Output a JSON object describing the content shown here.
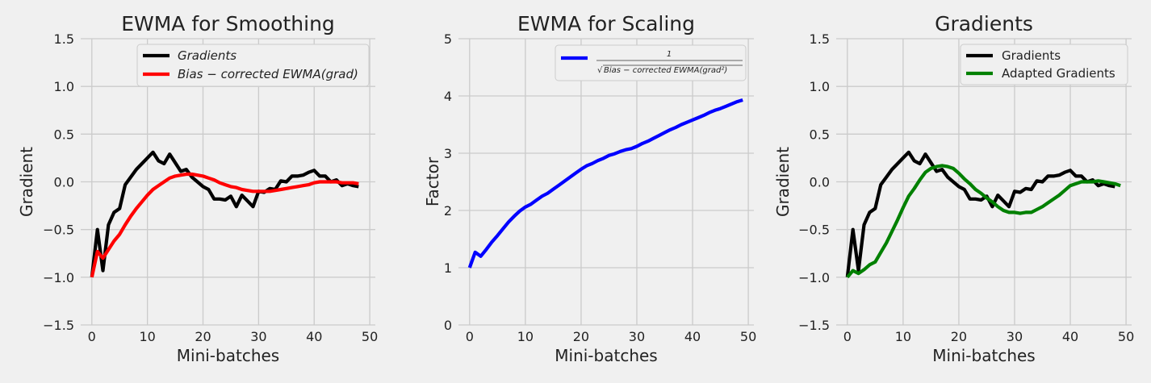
{
  "chart_data": [
    {
      "type": "line",
      "title": "EWMA for Smoothing",
      "xlabel": "Mini-batches",
      "ylabel": "Gradient",
      "xlim": [
        -2,
        51
      ],
      "ylim": [
        -1.5,
        1.5
      ],
      "xticks": [
        "0",
        "10",
        "20",
        "30",
        "40",
        "50"
      ],
      "yticks": [
        "−1.5",
        "−1.0",
        "−0.5",
        "0.0",
        "0.5",
        "1.0",
        "1.5"
      ],
      "legend": "upper-right",
      "grid": true,
      "series": [
        {
          "name": "Gradients",
          "color": "#000000",
          "x": [
            0,
            1,
            2,
            3,
            4,
            5,
            6,
            7,
            8,
            9,
            10,
            11,
            12,
            13,
            14,
            15,
            16,
            17,
            18,
            19,
            20,
            21,
            22,
            23,
            24,
            25,
            26,
            27,
            28,
            29,
            30,
            31,
            32,
            33,
            34,
            35,
            36,
            37,
            38,
            39,
            40,
            41,
            42,
            43,
            44,
            45,
            46,
            47,
            48,
            49
          ],
          "values": [
            -1.0,
            -0.5,
            -0.93,
            -0.45,
            -0.32,
            -0.28,
            -0.03,
            0.05,
            0.13,
            0.19,
            0.25,
            0.31,
            0.22,
            0.19,
            0.29,
            0.2,
            0.11,
            0.13,
            0.05,
            0.0,
            -0.05,
            -0.08,
            -0.18,
            -0.18,
            -0.19,
            -0.15,
            -0.26,
            -0.14,
            -0.2,
            -0.26,
            -0.1,
            -0.11,
            -0.07,
            -0.08,
            0.01,
            0.0,
            0.06,
            0.06,
            0.07,
            0.1,
            0.12,
            0.06,
            0.06,
            0.0,
            0.02,
            -0.04,
            -0.02,
            -0.04,
            -0.05,
            null
          ]
        },
        {
          "name": "Bias − corrected EWMA(grad)",
          "color": "#ff0000",
          "x": [
            0,
            1,
            2,
            3,
            4,
            5,
            6,
            7,
            8,
            9,
            10,
            11,
            12,
            13,
            14,
            15,
            16,
            17,
            18,
            19,
            20,
            21,
            22,
            23,
            24,
            25,
            26,
            27,
            28,
            29,
            30,
            31,
            32,
            33,
            34,
            35,
            36,
            37,
            38,
            39,
            40,
            41,
            42,
            43,
            44,
            45,
            46,
            47,
            48,
            49
          ],
          "values": [
            -1.0,
            -0.73,
            -0.8,
            -0.71,
            -0.62,
            -0.55,
            -0.45,
            -0.36,
            -0.28,
            -0.21,
            -0.14,
            -0.08,
            -0.04,
            0.0,
            0.04,
            0.06,
            0.07,
            0.08,
            0.08,
            0.07,
            0.06,
            0.04,
            0.02,
            -0.01,
            -0.03,
            -0.05,
            -0.06,
            -0.08,
            -0.09,
            -0.1,
            -0.1,
            -0.1,
            -0.1,
            -0.09,
            -0.08,
            -0.07,
            -0.06,
            -0.05,
            -0.04,
            -0.03,
            -0.01,
            0.0,
            0.0,
            0.0,
            0.0,
            -0.01,
            -0.01,
            -0.01,
            -0.02,
            null
          ]
        }
      ]
    },
    {
      "type": "line",
      "title": "EWMA for Scaling",
      "xlabel": "Mini-batches",
      "ylabel": "Factor",
      "xlim": [
        -2,
        51
      ],
      "ylim": [
        0,
        5
      ],
      "xticks": [
        "0",
        "10",
        "20",
        "30",
        "40",
        "50"
      ],
      "yticks": [
        "0",
        "1",
        "2",
        "3",
        "4",
        "5"
      ],
      "legend": "upper-right",
      "grid": true,
      "series": [
        {
          "name": "Bias − corrected EWMA(grad²)",
          "color": "#0000ff",
          "x": [
            0,
            1,
            2,
            3,
            4,
            5,
            6,
            7,
            8,
            9,
            10,
            11,
            12,
            13,
            14,
            15,
            16,
            17,
            18,
            19,
            20,
            21,
            22,
            23,
            24,
            25,
            26,
            27,
            28,
            29,
            30,
            31,
            32,
            33,
            34,
            35,
            36,
            37,
            38,
            39,
            40,
            41,
            42,
            43,
            44,
            45,
            46,
            47,
            48,
            49
          ],
          "values": [
            1.0,
            1.27,
            1.2,
            1.32,
            1.45,
            1.56,
            1.68,
            1.8,
            1.9,
            1.99,
            2.06,
            2.11,
            2.18,
            2.25,
            2.3,
            2.37,
            2.44,
            2.51,
            2.58,
            2.65,
            2.72,
            2.78,
            2.82,
            2.87,
            2.91,
            2.96,
            2.99,
            3.03,
            3.06,
            3.08,
            3.12,
            3.17,
            3.21,
            3.26,
            3.31,
            3.36,
            3.41,
            3.45,
            3.5,
            3.54,
            3.58,
            3.62,
            3.66,
            3.71,
            3.75,
            3.78,
            3.82,
            3.86,
            3.9,
            3.93
          ]
        }
      ]
    },
    {
      "type": "line",
      "title": "Gradients",
      "xlabel": "Mini-batches",
      "ylabel": "Gradient",
      "xlim": [
        -2,
        51
      ],
      "ylim": [
        -1.5,
        1.5
      ],
      "xticks": [
        "0",
        "10",
        "20",
        "30",
        "40",
        "50"
      ],
      "yticks": [
        "−1.5",
        "−1.0",
        "−0.5",
        "0.0",
        "0.5",
        "1.0",
        "1.5"
      ],
      "legend": "upper-right",
      "grid": true,
      "series": [
        {
          "name": "Gradients",
          "color": "#000000",
          "x": [
            0,
            1,
            2,
            3,
            4,
            5,
            6,
            7,
            8,
            9,
            10,
            11,
            12,
            13,
            14,
            15,
            16,
            17,
            18,
            19,
            20,
            21,
            22,
            23,
            24,
            25,
            26,
            27,
            28,
            29,
            30,
            31,
            32,
            33,
            34,
            35,
            36,
            37,
            38,
            39,
            40,
            41,
            42,
            43,
            44,
            45,
            46,
            47,
            48,
            49
          ],
          "values": [
            -1.0,
            -0.5,
            -0.93,
            -0.45,
            -0.32,
            -0.28,
            -0.03,
            0.05,
            0.13,
            0.19,
            0.25,
            0.31,
            0.22,
            0.19,
            0.29,
            0.2,
            0.11,
            0.13,
            0.05,
            0.0,
            -0.05,
            -0.08,
            -0.18,
            -0.18,
            -0.19,
            -0.15,
            -0.26,
            -0.14,
            -0.2,
            -0.26,
            -0.1,
            -0.11,
            -0.07,
            -0.08,
            0.01,
            0.0,
            0.06,
            0.06,
            0.07,
            0.1,
            0.12,
            0.06,
            0.06,
            0.0,
            0.02,
            -0.04,
            -0.02,
            -0.04,
            -0.05,
            null
          ]
        },
        {
          "name": "Adapted Gradients",
          "color": "#008000",
          "x": [
            0,
            1,
            2,
            3,
            4,
            5,
            6,
            7,
            8,
            9,
            10,
            11,
            12,
            13,
            14,
            15,
            16,
            17,
            18,
            19,
            20,
            21,
            22,
            23,
            24,
            25,
            26,
            27,
            28,
            29,
            30,
            31,
            32,
            33,
            34,
            35,
            36,
            37,
            38,
            39,
            40,
            41,
            42,
            43,
            44,
            45,
            46,
            47,
            48,
            49
          ],
          "values": [
            -1.0,
            -0.93,
            -0.96,
            -0.92,
            -0.87,
            -0.84,
            -0.74,
            -0.64,
            -0.52,
            -0.4,
            -0.27,
            -0.15,
            -0.07,
            0.02,
            0.1,
            0.14,
            0.16,
            0.17,
            0.16,
            0.14,
            0.09,
            0.03,
            -0.02,
            -0.08,
            -0.12,
            -0.17,
            -0.21,
            -0.26,
            -0.3,
            -0.32,
            -0.32,
            -0.33,
            -0.32,
            -0.32,
            -0.29,
            -0.26,
            -0.22,
            -0.18,
            -0.14,
            -0.09,
            -0.04,
            -0.02,
            0.0,
            0.0,
            0.0,
            0.01,
            0.0,
            -0.01,
            -0.02,
            -0.04
          ]
        }
      ]
    }
  ]
}
